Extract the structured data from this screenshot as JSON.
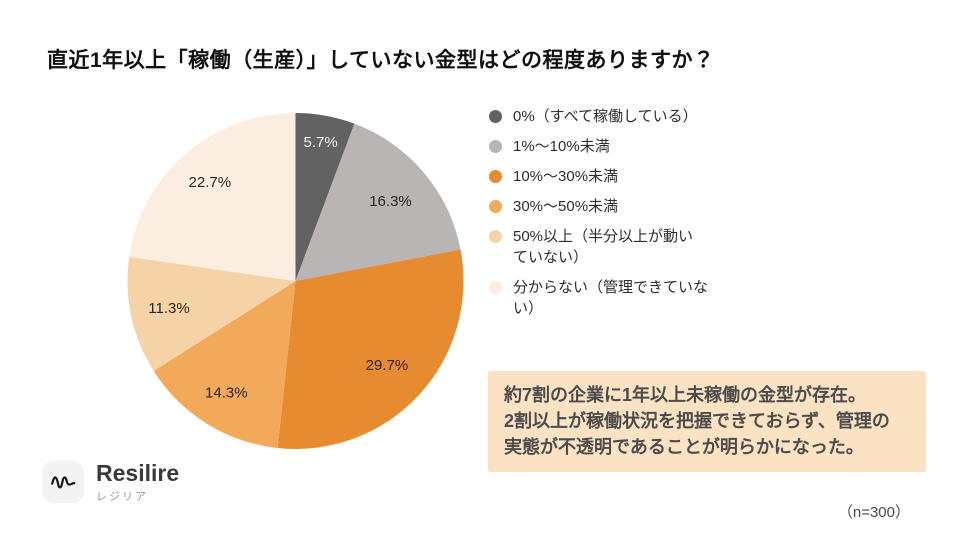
{
  "title": "直近1年以上「稼働（生産）」していない金型はどの程度ありますか？",
  "chart_data": {
    "type": "pie",
    "title": "直近1年以上「稼働（生産）」していない金型はどの程度ありますか？",
    "labels": [
      "0%（すべて稼働している）",
      "1%～10%未満",
      "10%～30%未満",
      "30%～50%未満",
      "50%以上（半分以上が動いていない）",
      "分からない（管理できていない）"
    ],
    "values": [
      5.7,
      16.3,
      29.7,
      14.3,
      11.3,
      22.7
    ],
    "value_labels": [
      "5.7%",
      "16.3%",
      "29.7%",
      "14.3%",
      "11.3%",
      "22.7%"
    ],
    "colors": [
      "#626262",
      "#b8b5b4",
      "#e78b31",
      "#f2a959",
      "#f6d2a7",
      "#fbeee0"
    ],
    "value_label_colors": [
      "#efefef",
      "#262626",
      "#262626",
      "#262626",
      "#262626",
      "#262626"
    ],
    "label_radius_fractions": [
      0.84,
      0.74,
      0.74,
      0.78,
      0.77,
      0.78
    ],
    "start_angle_deg": 0,
    "direction": "clockwise",
    "legend_position": "right",
    "sample_size_note": "（n=300）"
  },
  "legend": {
    "items": [
      {
        "label": "0%（すべて稼働している）",
        "color": "#626262"
      },
      {
        "label": "1%～10%未満",
        "color": "#b8b5b4"
      },
      {
        "label": "10%～30%未満",
        "color": "#e78b31"
      },
      {
        "label": "30%～50%未満",
        "color": "#f2a959"
      },
      {
        "label": "50%以上（半分以上が動い\nていない）",
        "color": "#f6d2a7"
      },
      {
        "label": "分からない（管理できていな\nい）",
        "color": "#fbeee0"
      }
    ]
  },
  "callout": {
    "text": "約7割の企業に1年以上未稼働の金型が存在。\n2割以上が稼働状況を把握できておらず、管理の\n実態が不透明であることが明らかになった。",
    "background_color": "#fbe2c3"
  },
  "logo": {
    "name": "Resilire",
    "subtitle": "レジリア"
  },
  "footer": {
    "n_note": "（n=300）"
  }
}
